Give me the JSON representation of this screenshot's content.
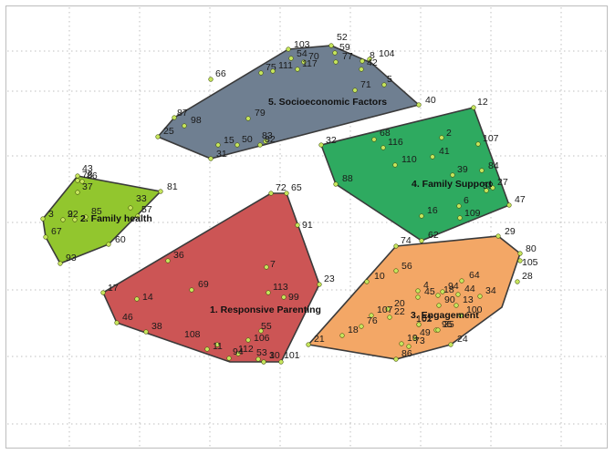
{
  "clusters": [
    {
      "id": "c1",
      "label": "1.  Responsive Parenting",
      "color": "#cc5555",
      "points": [
        "72",
        "65",
        "91",
        "23",
        "7",
        "101",
        "113",
        "99",
        "55",
        "106",
        "112",
        "94",
        "53",
        "30",
        "1",
        "17",
        "14",
        "69",
        "36",
        "46",
        "38",
        "108",
        "11"
      ]
    },
    {
      "id": "c2",
      "label": "2.  Family health",
      "color": "#92c62e",
      "points": [
        "43",
        "78",
        "86",
        "37",
        "3",
        "92",
        "2",
        "85",
        "67",
        "33",
        "57",
        "81",
        "60",
        "93"
      ]
    },
    {
      "id": "c3",
      "label": "3.  Engagement",
      "color": "#f3a766",
      "points": [
        "74",
        "29",
        "80",
        "105",
        "28",
        "56",
        "10",
        "64",
        "4",
        "45",
        "94",
        "18",
        "44",
        "34",
        "90",
        "13",
        "20",
        "107",
        "22",
        "100",
        "76",
        "18",
        "102",
        "95",
        "35",
        "21",
        "61",
        "49",
        "19",
        "24",
        "73",
        "86"
      ]
    },
    {
      "id": "c4",
      "label": "4.  Family Support",
      "color": "#2eaa60",
      "points": [
        "12",
        "32",
        "68",
        "116",
        "2",
        "107",
        "41",
        "110",
        "39",
        "84",
        "58",
        "88",
        "6",
        "27",
        "16",
        "109",
        "47",
        "62"
      ]
    },
    {
      "id": "c5",
      "label": "5.  Socioeconomic Factors",
      "color": "#6f7f91",
      "points": [
        "103",
        "52",
        "54",
        "70",
        "59",
        "8",
        "104",
        "75",
        "111",
        "117",
        "77",
        "42",
        "66",
        "5",
        "71",
        "40",
        "87",
        "98",
        "79",
        "25",
        "15",
        "50",
        "83",
        "82",
        "31"
      ]
    }
  ],
  "colors": {
    "grid": "#bfbfbf",
    "outline": "#3a3a3a",
    "marker": "#c7e65e"
  }
}
